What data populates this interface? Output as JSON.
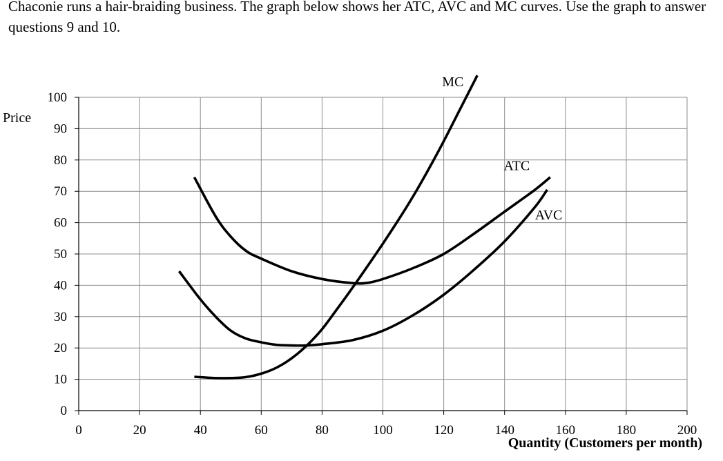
{
  "intro_text": "Chaconie runs a hair-braiding business. The graph below shows her ATC, AVC and MC curves. Use the graph to answer questions 9 and 10.",
  "chart_data": {
    "type": "line",
    "xlabel": "Quantity (Customers per month)",
    "ylabel": "Price",
    "xlim": [
      0,
      200
    ],
    "ylim": [
      0,
      100
    ],
    "x_ticks": [
      0,
      20,
      40,
      60,
      80,
      100,
      120,
      140,
      160,
      180,
      200
    ],
    "y_ticks": [
      0,
      10,
      20,
      30,
      40,
      50,
      60,
      70,
      80,
      90,
      100
    ],
    "grid": true,
    "series": [
      {
        "name": "MC",
        "x": [
          38,
          45,
          50,
          55,
          60,
          65,
          70,
          75,
          80,
          85,
          90,
          95,
          100,
          105,
          110,
          115,
          120,
          125,
          130,
          131
        ],
        "y": [
          10.8,
          10.4,
          10.4,
          10.7,
          11.8,
          13.7,
          16.7,
          20.8,
          26.0,
          32.5,
          39.2,
          46.2,
          53.3,
          60.7,
          68.5,
          77.0,
          86.0,
          95.5,
          105.0,
          107.0
        ]
      },
      {
        "name": "ATC",
        "x": [
          38,
          45,
          50,
          55,
          60,
          70,
          80,
          90,
          95,
          100,
          110,
          120,
          130,
          140,
          150,
          155
        ],
        "y": [
          74.5,
          62.0,
          55.5,
          51.0,
          48.5,
          44.5,
          42.0,
          40.7,
          40.8,
          42.0,
          45.5,
          50.0,
          56.5,
          63.5,
          70.5,
          74.5
        ]
      },
      {
        "name": "AVC",
        "x": [
          33,
          40,
          45,
          50,
          55,
          60,
          65,
          70,
          75,
          80,
          90,
          100,
          110,
          120,
          130,
          140,
          150,
          154
        ],
        "y": [
          44.5,
          35.5,
          30.0,
          25.5,
          23.0,
          21.8,
          21.0,
          20.8,
          20.8,
          21.2,
          22.5,
          25.5,
          30.5,
          37.0,
          45.0,
          54.0,
          65.0,
          70.5
        ]
      }
    ]
  }
}
